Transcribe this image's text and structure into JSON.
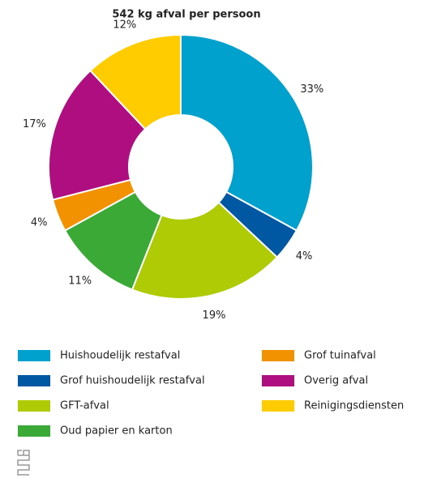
{
  "chart_data": {
    "type": "donut",
    "title": "542 kg afval per persoon",
    "categories": [
      "Huishoudelijk restafval",
      "Grof huishoudelijk restafval",
      "GFT-afval",
      "Oud papier en karton",
      "Grof tuinafval",
      "Overig afval",
      "Reinigingsdiensten"
    ],
    "values": [
      33,
      4,
      19,
      11,
      4,
      17,
      12
    ],
    "value_labels": [
      "33%",
      "4%",
      "19%",
      "11%",
      "4%",
      "17%",
      "12%"
    ],
    "colors": [
      "#00a1cd",
      "#0058a3",
      "#afcb05",
      "#3aa935",
      "#f39200",
      "#af0e80",
      "#ffcc00"
    ]
  }
}
